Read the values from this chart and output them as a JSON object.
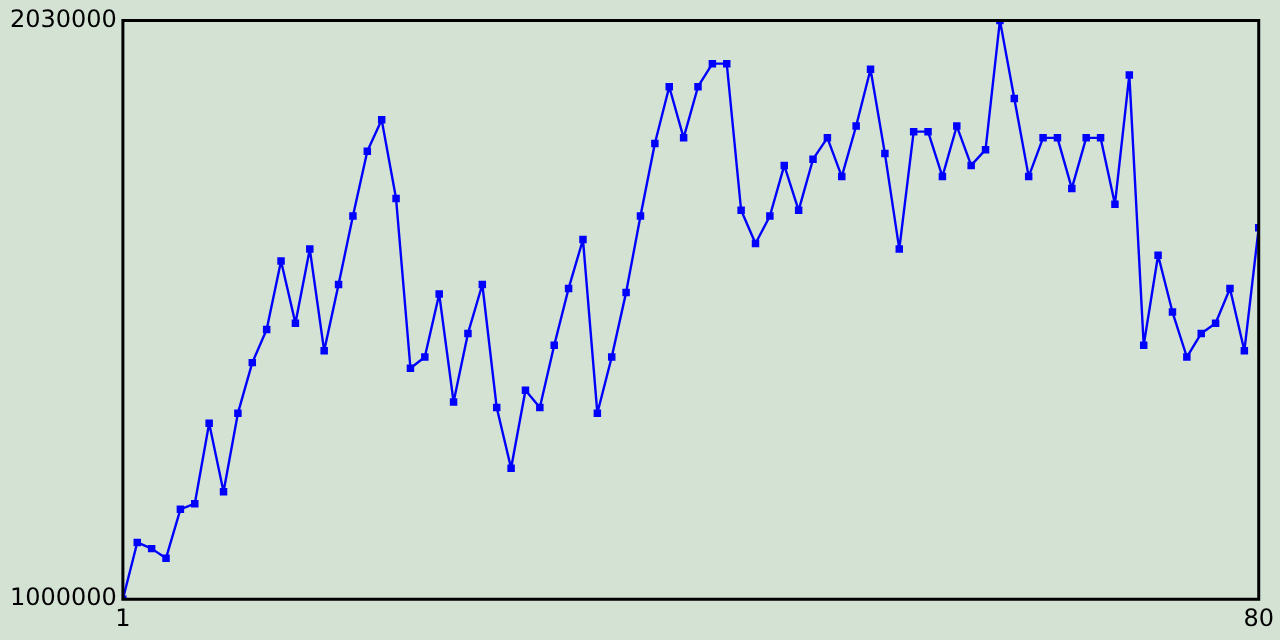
{
  "chart_data": {
    "type": "line",
    "x": [
      1,
      2,
      3,
      4,
      5,
      6,
      7,
      8,
      9,
      10,
      11,
      12,
      13,
      14,
      15,
      16,
      17,
      18,
      19,
      20,
      21,
      22,
      23,
      24,
      25,
      26,
      27,
      28,
      29,
      30,
      31,
      32,
      33,
      34,
      35,
      36,
      37,
      38,
      39,
      40,
      41,
      42,
      43,
      44,
      45,
      46,
      47,
      48,
      49,
      50,
      51,
      52,
      53,
      54,
      55,
      56,
      57,
      58,
      59,
      60,
      61,
      62,
      63,
      64,
      65,
      66,
      67,
      68,
      69,
      70,
      71,
      72,
      73,
      74,
      75,
      76,
      77,
      78,
      79,
      80
    ],
    "series": [
      {
        "color": "#0000ff",
        "values": [
          1000000,
          1101000,
          1090000,
          1073000,
          1160000,
          1170000,
          1313000,
          1191000,
          1331000,
          1421000,
          1480000,
          1602000,
          1491000,
          1623000,
          1442000,
          1560000,
          1682000,
          1797000,
          1853000,
          1713000,
          1411000,
          1431000,
          1543000,
          1351000,
          1473000,
          1560000,
          1341000,
          1233000,
          1372000,
          1341000,
          1452000,
          1553000,
          1640000,
          1331000,
          1431000,
          1546000,
          1682000,
          1811000,
          1912000,
          1821000,
          1912000,
          1953000,
          1953000,
          1692000,
          1633000,
          1682000,
          1772000,
          1692000,
          1783000,
          1821000,
          1752000,
          1842000,
          1943000,
          1793000,
          1623000,
          1832000,
          1832000,
          1752000,
          1842000,
          1772000,
          1800000,
          2030000,
          1891000,
          1752000,
          1821000,
          1821000,
          1731000,
          1821000,
          1821000,
          1703000,
          1933000,
          1452000,
          1612000,
          1511000,
          1431000,
          1473000,
          1491000,
          1553000,
          1442000,
          1661000
        ]
      }
    ],
    "xlim": [
      1,
      80
    ],
    "xticks": [
      1,
      80
    ],
    "ylim": [
      1000000,
      2030000
    ],
    "yticks": [
      1000000,
      2030000
    ],
    "legend": false,
    "marker": "square",
    "line_style": "solid"
  }
}
